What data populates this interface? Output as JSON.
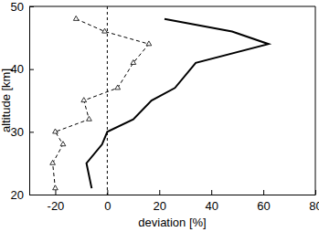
{
  "chart_data": {
    "type": "line",
    "xlabel": "deviation [%]",
    "ylabel": "altitude [km]",
    "xlim": [
      -30,
      80
    ],
    "xticks": [
      -20,
      0,
      20,
      40,
      60,
      80
    ],
    "ylim": [
      20,
      50
    ],
    "yticks": [
      20,
      30,
      40,
      50
    ],
    "vline": 0,
    "series": [
      {
        "color": "#000000",
        "line_style": "dashed",
        "marker": "triangle",
        "x": [
          -12,
          -1,
          16,
          10,
          4,
          -9,
          -7,
          -20,
          -17,
          -21,
          -20
        ],
        "values": [
          48,
          46,
          44,
          41,
          37,
          35,
          32,
          30,
          28,
          25,
          21
        ]
      },
      {
        "color": "#000000",
        "line_style": "solid",
        "marker": "none",
        "x": [
          22,
          48,
          62,
          34,
          26,
          17,
          10,
          0,
          -2,
          -8,
          -6
        ],
        "values": [
          48,
          46,
          44,
          41,
          37,
          35,
          32,
          30,
          28,
          25,
          21
        ]
      }
    ]
  }
}
